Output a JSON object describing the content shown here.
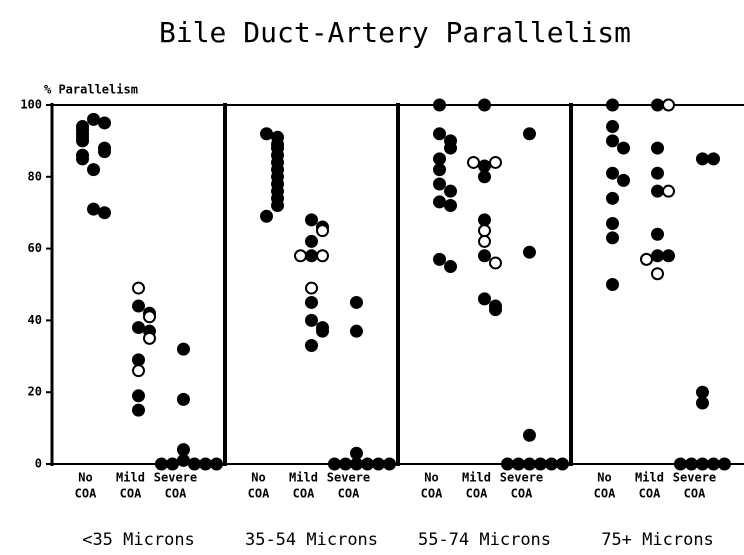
{
  "chart_data": {
    "type": "dotplot",
    "title": "Bile Duct-Artery Parallelism",
    "ylabel": "% Parallelism",
    "ylim": [
      0,
      100
    ],
    "yticks": [
      0,
      20,
      40,
      60,
      80,
      100
    ],
    "color": "#000000",
    "categories": [
      [
        "No",
        "COA"
      ],
      [
        "Mild",
        "COA"
      ],
      [
        "Severe",
        "COA"
      ]
    ],
    "panels": [
      {
        "label": "<35 Microns",
        "filled": [
          [
            96,
            95,
            94,
            93,
            92,
            91,
            90,
            88,
            87,
            86,
            85,
            82,
            71,
            70
          ],
          [
            44,
            42,
            38,
            37,
            29,
            19,
            15
          ],
          [
            32,
            18,
            4,
            1,
            0,
            0,
            0,
            0,
            0
          ]
        ],
        "open": [
          [],
          [
            49,
            41,
            35,
            26
          ],
          []
        ]
      },
      {
        "label": "35-54 Microns",
        "filled": [
          [
            92,
            91,
            89,
            88,
            86,
            84,
            82,
            80,
            78,
            76,
            74,
            72,
            69
          ],
          [
            68,
            66,
            62,
            58,
            45,
            40,
            38,
            37,
            33
          ],
          [
            45,
            37,
            3,
            0,
            0,
            0,
            0,
            0,
            0
          ]
        ],
        "open": [
          [],
          [
            65,
            58,
            58,
            49
          ],
          []
        ]
      },
      {
        "label": "55-74 Microns",
        "filled": [
          [
            100,
            92,
            90,
            88,
            85,
            82,
            78,
            76,
            73,
            72,
            57,
            55
          ],
          [
            100,
            83,
            80,
            68,
            58,
            46,
            44,
            43
          ],
          [
            92,
            59,
            8,
            0,
            0,
            0,
            0,
            0,
            0
          ]
        ],
        "open": [
          [],
          [
            84,
            84,
            65,
            62,
            56
          ],
          []
        ]
      },
      {
        "label": "75+ Microns",
        "filled": [
          [
            100,
            94,
            90,
            88,
            81,
            79,
            74,
            67,
            63,
            50
          ],
          [
            100,
            88,
            81,
            76,
            64,
            58,
            58
          ],
          [
            85,
            85,
            20,
            17,
            0,
            0,
            0,
            0,
            0
          ]
        ],
        "open": [
          [],
          [
            100,
            76,
            57,
            53
          ],
          []
        ]
      }
    ]
  }
}
